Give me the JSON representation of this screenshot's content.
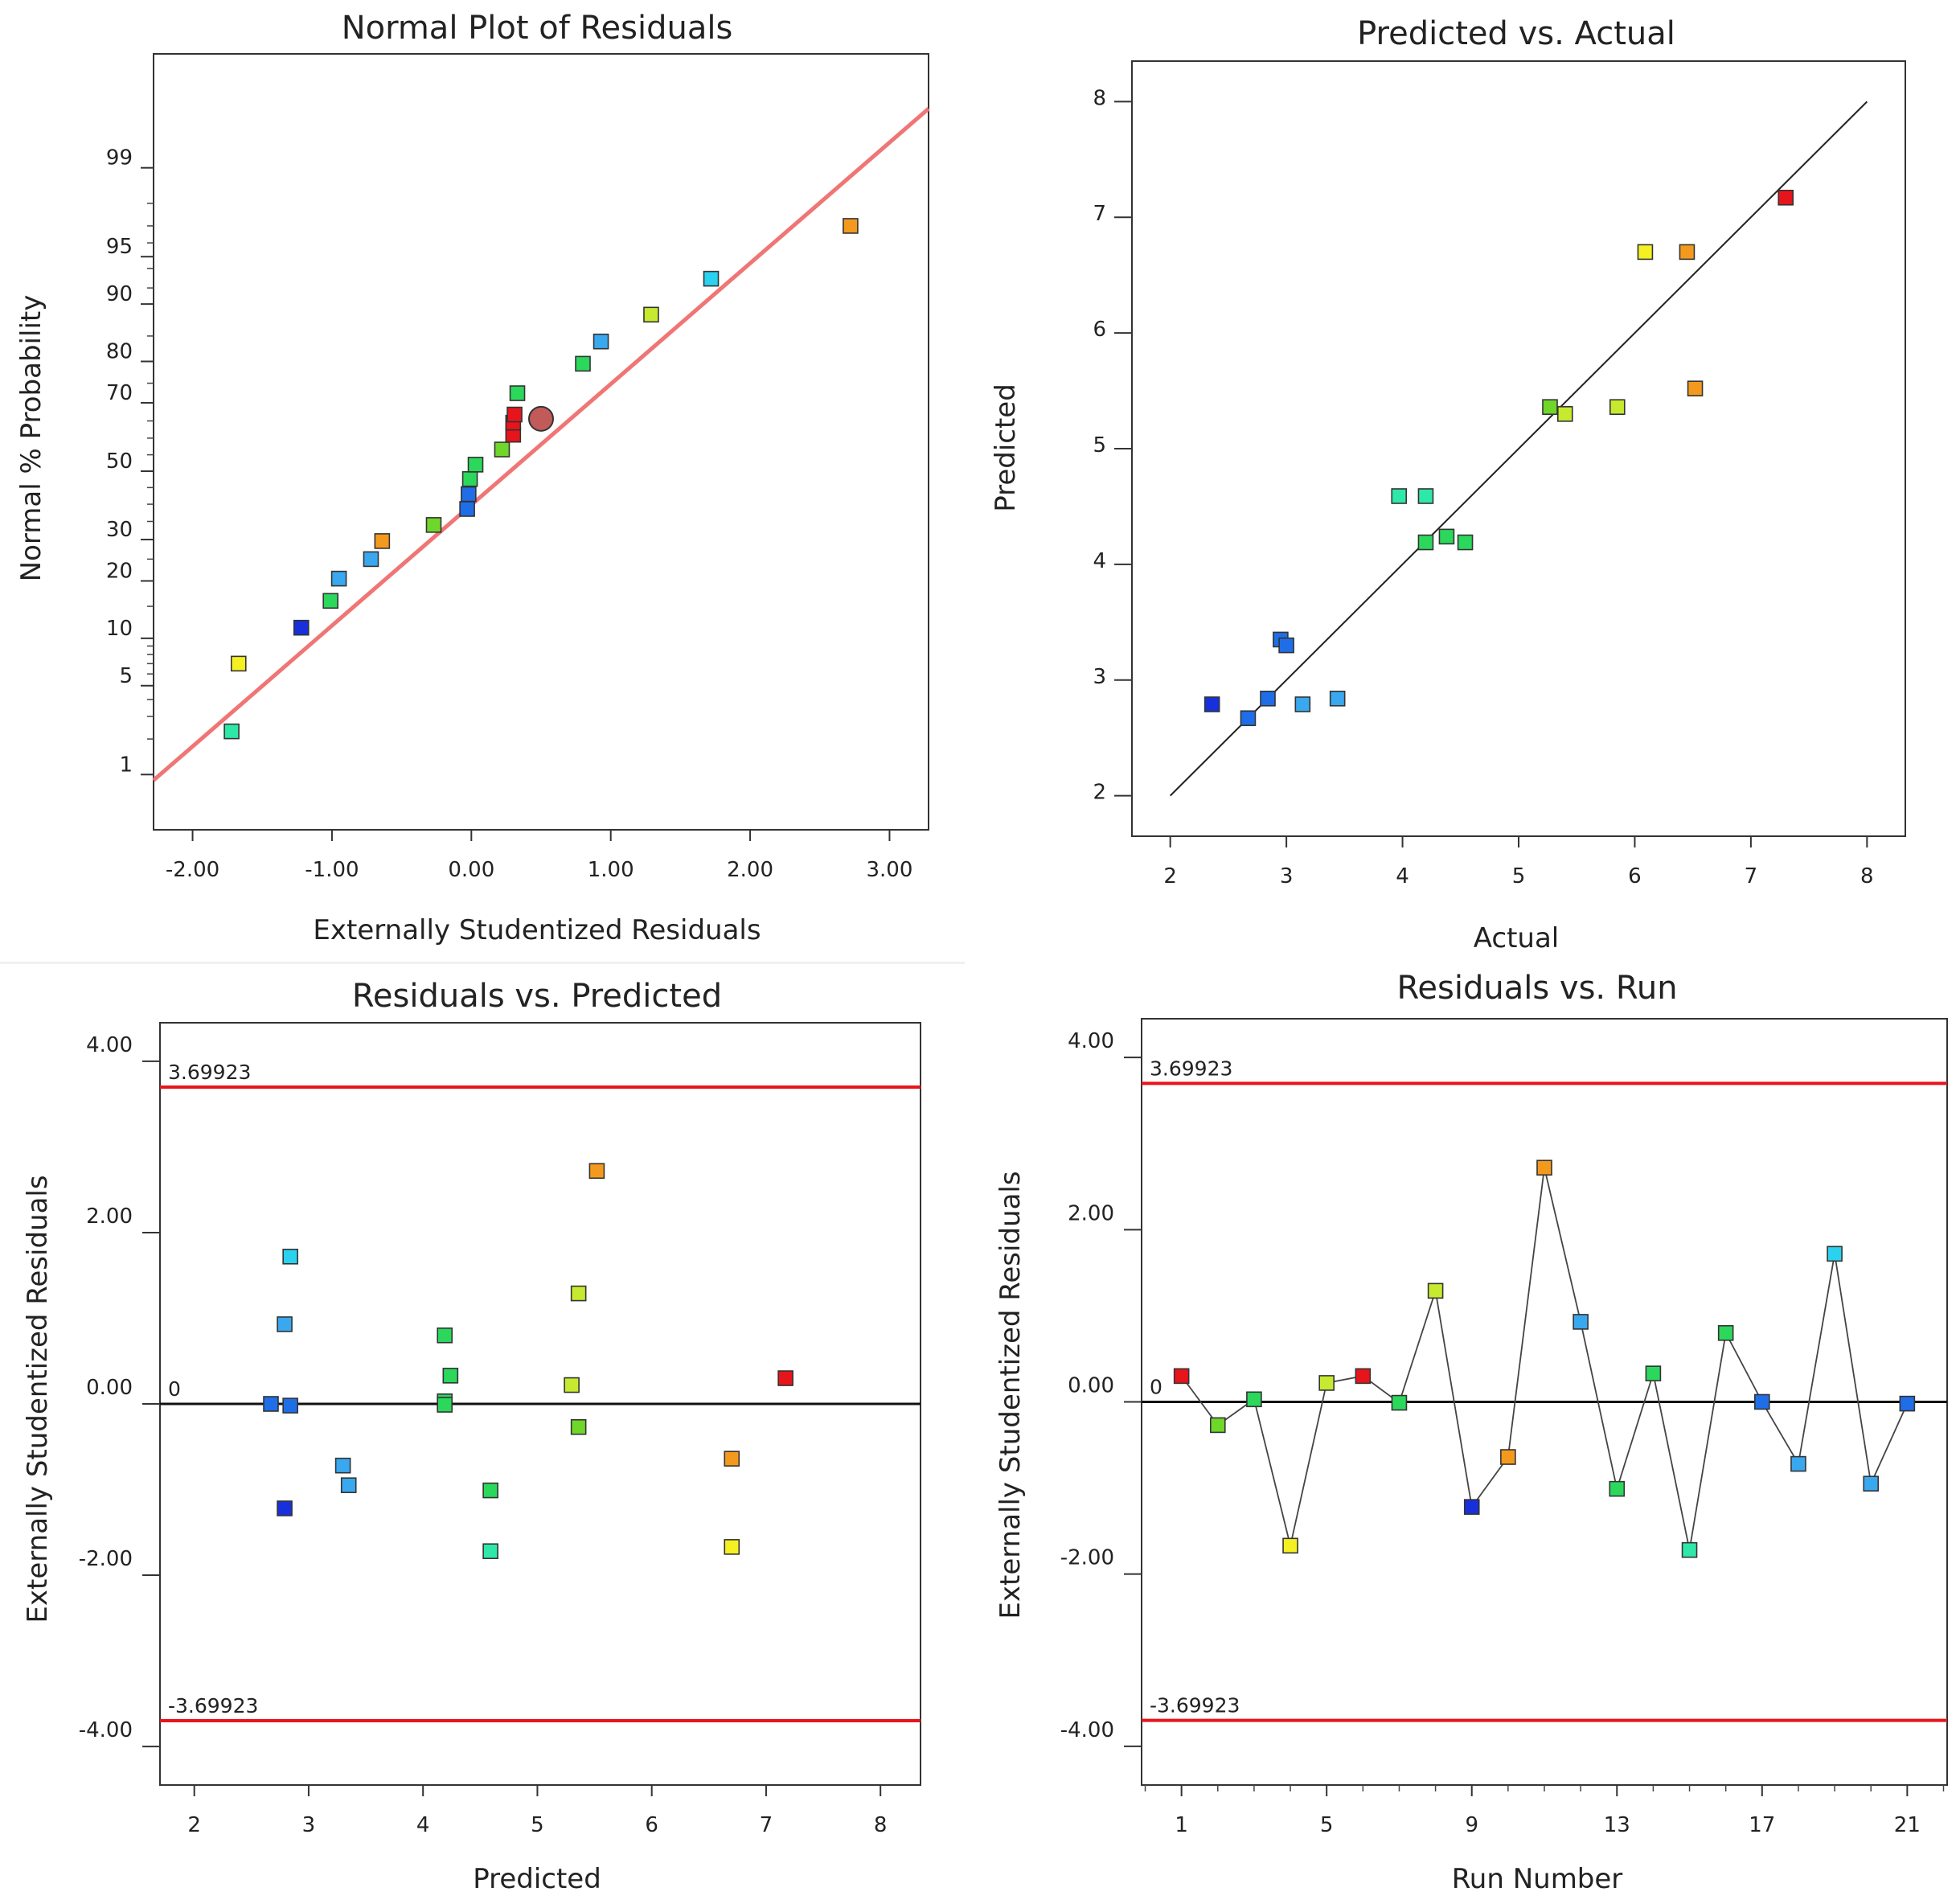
{
  "colors": {
    "red": "#e8141c",
    "orange": "#f39a1e",
    "yellow": "#f5f022",
    "yellowgreen": "#c6ea2f",
    "lime": "#6fd62a",
    "green": "#2bd85c",
    "teal": "#2ee8a8",
    "cyan": "#2ad2f0",
    "skyblue": "#3aa8ee",
    "blue": "#1f6ee8",
    "navy": "#1830dc",
    "fitline": "#f07575",
    "limitline": "#e8141c",
    "circle": "#c25a5a"
  },
  "chart_data": [
    {
      "id": "normal",
      "type": "scatter",
      "title": "Normal Plot of Residuals",
      "xlabel": "Externally Studentized Residuals",
      "ylabel": "Normal % Probability",
      "xlim": [
        -2.28,
        3.28
      ],
      "xticks": [
        -2,
        -1,
        0,
        1,
        2,
        3
      ],
      "xticklabels": [
        "-2.00",
        "-1.00",
        "0.00",
        "1.00",
        "2.00",
        "3.00"
      ],
      "ytick_values": [
        1,
        5,
        10,
        20,
        30,
        50,
        70,
        80,
        90,
        95,
        99
      ],
      "yticklabels": [
        "1",
        "5",
        "10",
        "20",
        "30",
        "50",
        "70",
        "80",
        "90",
        "95",
        "99"
      ],
      "fit_line": {
        "x": [
          -2.28,
          3.28
        ],
        "z": [
          -2.37,
          2.78
        ]
      },
      "highlight": {
        "x": 0.5,
        "p": 65.6
      },
      "points": [
        {
          "x": -1.72,
          "p": 2.3,
          "c": "teal"
        },
        {
          "x": -1.67,
          "p": 7.0,
          "c": "yellow"
        },
        {
          "x": -1.22,
          "p": 11.5,
          "c": "navy"
        },
        {
          "x": -1.01,
          "p": 16.0,
          "c": "green"
        },
        {
          "x": -0.95,
          "p": 20.5,
          "c": "skyblue"
        },
        {
          "x": -0.72,
          "p": 25.0,
          "c": "skyblue"
        },
        {
          "x": -0.64,
          "p": 29.6,
          "c": "orange"
        },
        {
          "x": -0.27,
          "p": 34.0,
          "c": "lime"
        },
        {
          "x": -0.03,
          "p": 38.6,
          "c": "blue"
        },
        {
          "x": -0.02,
          "p": 43.0,
          "c": "blue"
        },
        {
          "x": -0.01,
          "p": 47.6,
          "c": "green"
        },
        {
          "x": 0.03,
          "p": 52.0,
          "c": "green"
        },
        {
          "x": 0.22,
          "p": 56.6,
          "c": "lime"
        },
        {
          "x": 0.3,
          "p": 61.0,
          "c": "red"
        },
        {
          "x": 0.3,
          "p": 64.5,
          "c": "red"
        },
        {
          "x": 0.31,
          "p": 66.8,
          "c": "red"
        },
        {
          "x": 0.33,
          "p": 72.5,
          "c": "green"
        },
        {
          "x": 0.8,
          "p": 79.5,
          "c": "green"
        },
        {
          "x": 0.93,
          "p": 84.0,
          "c": "skyblue"
        },
        {
          "x": 1.29,
          "p": 88.5,
          "c": "yellowgreen"
        },
        {
          "x": 1.72,
          "p": 93.0,
          "c": "cyan"
        },
        {
          "x": 2.72,
          "p": 97.0,
          "c": "orange"
        }
      ]
    },
    {
      "id": "pva",
      "type": "scatter",
      "title": "Predicted vs. Actual",
      "xlabel": "Actual",
      "ylabel": "Predicted",
      "xlim": [
        1.67,
        8.33
      ],
      "ylim": [
        1.65,
        8.35
      ],
      "xticks": [
        2,
        3,
        4,
        5,
        6,
        7,
        8
      ],
      "xticklabels": [
        "2",
        "3",
        "4",
        "5",
        "6",
        "7",
        "8"
      ],
      "yticks": [
        2,
        3,
        4,
        5,
        6,
        7,
        8
      ],
      "yticklabels": [
        "2",
        "3",
        "4",
        "5",
        "6",
        "7",
        "8"
      ],
      "ref_line": [
        [
          2,
          2
        ],
        [
          8,
          8
        ]
      ],
      "points": [
        {
          "x": 2.36,
          "y": 2.79,
          "c": "navy"
        },
        {
          "x": 2.67,
          "y": 2.67,
          "c": "blue"
        },
        {
          "x": 2.84,
          "y": 2.84,
          "c": "blue"
        },
        {
          "x": 2.95,
          "y": 3.35,
          "c": "blue"
        },
        {
          "x": 3.0,
          "y": 3.3,
          "c": "blue"
        },
        {
          "x": 3.14,
          "y": 2.79,
          "c": "skyblue"
        },
        {
          "x": 3.44,
          "y": 2.84,
          "c": "skyblue"
        },
        {
          "x": 3.97,
          "y": 4.59,
          "c": "teal"
        },
        {
          "x": 4.2,
          "y": 4.59,
          "c": "teal"
        },
        {
          "x": 4.2,
          "y": 4.19,
          "c": "green"
        },
        {
          "x": 4.38,
          "y": 4.24,
          "c": "green"
        },
        {
          "x": 4.54,
          "y": 4.19,
          "c": "green"
        },
        {
          "x": 5.27,
          "y": 5.36,
          "c": "lime"
        },
        {
          "x": 5.4,
          "y": 5.3,
          "c": "yellowgreen"
        },
        {
          "x": 5.85,
          "y": 5.36,
          "c": "yellowgreen"
        },
        {
          "x": 6.09,
          "y": 6.7,
          "c": "yellow"
        },
        {
          "x": 6.45,
          "y": 6.7,
          "c": "orange"
        },
        {
          "x": 6.52,
          "y": 5.52,
          "c": "orange"
        },
        {
          "x": 7.3,
          "y": 7.17,
          "c": "red"
        }
      ]
    },
    {
      "id": "rvp",
      "type": "scatter",
      "title": "Residuals vs. Predicted",
      "xlabel": "Predicted",
      "ylabel": "Externally Studentized Residuals",
      "xlim": [
        1.7,
        8.35
      ],
      "ylim": [
        -4.45,
        4.45
      ],
      "xticks": [
        2,
        3,
        4,
        5,
        6,
        7,
        8
      ],
      "xticklabels": [
        "2",
        "3",
        "4",
        "5",
        "6",
        "7",
        "8"
      ],
      "yticks": [
        -4,
        -2,
        0,
        2,
        4
      ],
      "yticklabels": [
        "-4.00",
        "-2.00",
        "0.00",
        "2.00",
        "4.00"
      ],
      "limits": [
        3.69923,
        -3.69923
      ],
      "limit_labels": [
        "3.69923",
        "-3.69923"
      ],
      "zero_label": "0",
      "points": [
        {
          "x": 2.67,
          "y": 0.0,
          "c": "blue"
        },
        {
          "x": 2.79,
          "y": -1.22,
          "c": "navy"
        },
        {
          "x": 2.79,
          "y": 0.93,
          "c": "skyblue"
        },
        {
          "x": 2.84,
          "y": 1.72,
          "c": "cyan"
        },
        {
          "x": 2.84,
          "y": -0.02,
          "c": "blue"
        },
        {
          "x": 3.3,
          "y": -0.72,
          "c": "skyblue"
        },
        {
          "x": 3.35,
          "y": -0.95,
          "c": "skyblue"
        },
        {
          "x": 4.19,
          "y": 0.8,
          "c": "green"
        },
        {
          "x": 4.19,
          "y": 0.03,
          "c": "green"
        },
        {
          "x": 4.19,
          "y": -0.01,
          "c": "green"
        },
        {
          "x": 4.24,
          "y": 0.33,
          "c": "green"
        },
        {
          "x": 4.59,
          "y": -1.01,
          "c": "green"
        },
        {
          "x": 4.59,
          "y": -1.72,
          "c": "teal"
        },
        {
          "x": 5.3,
          "y": 0.22,
          "c": "yellowgreen"
        },
        {
          "x": 5.36,
          "y": 1.29,
          "c": "yellowgreen"
        },
        {
          "x": 5.36,
          "y": -0.27,
          "c": "lime"
        },
        {
          "x": 5.52,
          "y": 2.72,
          "c": "orange"
        },
        {
          "x": 6.7,
          "y": -0.64,
          "c": "orange"
        },
        {
          "x": 6.7,
          "y": -1.67,
          "c": "yellow"
        },
        {
          "x": 7.17,
          "y": 0.3,
          "c": "red"
        }
      ]
    },
    {
      "id": "rvr",
      "type": "line",
      "title": "Residuals vs. Run",
      "xlabel": "Run Number",
      "ylabel": "Externally Studentized Residuals",
      "xlim": [
        -0.1,
        22.1
      ],
      "ylim": [
        -4.45,
        4.45
      ],
      "xticks": [
        1,
        5,
        9,
        13,
        17,
        21
      ],
      "xticklabels": [
        "1",
        "5",
        "9",
        "13",
        "17",
        "21"
      ],
      "yticks": [
        -4,
        -2,
        0,
        2,
        4
      ],
      "yticklabels": [
        "-4.00",
        "-2.00",
        "0.00",
        "2.00",
        "4.00"
      ],
      "limits": [
        3.69923,
        -3.69923
      ],
      "limit_labels": [
        "3.69923",
        "-3.69923"
      ],
      "zero_label": "0",
      "points": [
        {
          "x": 1,
          "y": 0.3,
          "c": "red"
        },
        {
          "x": 2,
          "y": -0.27,
          "c": "lime"
        },
        {
          "x": 3,
          "y": 0.03,
          "c": "green"
        },
        {
          "x": 4,
          "y": -1.67,
          "c": "yellow"
        },
        {
          "x": 5,
          "y": 0.22,
          "c": "yellowgreen"
        },
        {
          "x": 6,
          "y": 0.3,
          "c": "red"
        },
        {
          "x": 7,
          "y": -0.01,
          "c": "green"
        },
        {
          "x": 8,
          "y": 1.29,
          "c": "yellowgreen"
        },
        {
          "x": 9,
          "y": -1.22,
          "c": "navy"
        },
        {
          "x": 10,
          "y": -0.64,
          "c": "orange"
        },
        {
          "x": 11,
          "y": 2.72,
          "c": "orange"
        },
        {
          "x": 12,
          "y": 0.93,
          "c": "skyblue"
        },
        {
          "x": 13,
          "y": -1.01,
          "c": "green"
        },
        {
          "x": 14,
          "y": 0.33,
          "c": "green"
        },
        {
          "x": 15,
          "y": -1.72,
          "c": "teal"
        },
        {
          "x": 16,
          "y": 0.8,
          "c": "green"
        },
        {
          "x": 17,
          "y": 0.0,
          "c": "blue"
        },
        {
          "x": 18,
          "y": -0.72,
          "c": "skyblue"
        },
        {
          "x": 19,
          "y": 1.72,
          "c": "cyan"
        },
        {
          "x": 20,
          "y": -0.95,
          "c": "skyblue"
        },
        {
          "x": 21,
          "y": -0.02,
          "c": "blue"
        }
      ]
    }
  ]
}
